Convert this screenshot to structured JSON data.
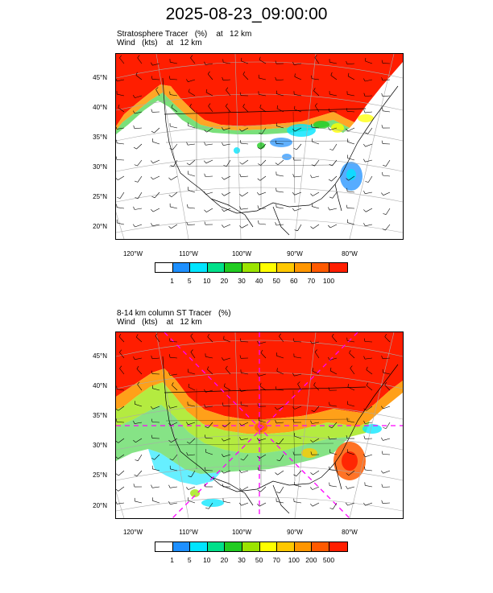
{
  "title": "2025-08-23_09:00:00",
  "panel1": {
    "line1": "Stratosphere Tracer   (%)    at   12 km",
    "line2": "Wind   (kts)    at   12 km",
    "lat_labels": [
      "45°N",
      "40°N",
      "35°N",
      "30°N",
      "25°N",
      "20°N"
    ],
    "lon_labels": [
      "120°W",
      "110°W",
      "100°W",
      "90°W",
      "80°W"
    ],
    "colorbar_labels": [
      "1",
      "5",
      "10",
      "20",
      "30",
      "40",
      "50",
      "60",
      "70",
      "100"
    ]
  },
  "panel2": {
    "line1": "8-14 km column ST Tracer   (%)",
    "line2": "Wind   (kts)    at   12 km",
    "lat_labels": [
      "45°N",
      "40°N",
      "35°N",
      "30°N",
      "25°N",
      "20°N"
    ],
    "lon_labels": [
      "120°W",
      "110°W",
      "100°W",
      "90°W",
      "80°W"
    ],
    "colorbar_labels": [
      "1",
      "5",
      "10",
      "20",
      "30",
      "50",
      "70",
      "100",
      "200",
      "500"
    ]
  },
  "colorbar_colors": [
    "#ffffff",
    "#1e90ff",
    "#00e5ff",
    "#00e08a",
    "#22cc22",
    "#9be400",
    "#ffff00",
    "#ffc800",
    "#ff9600",
    "#ff5a00",
    "#ff1e00"
  ]
}
